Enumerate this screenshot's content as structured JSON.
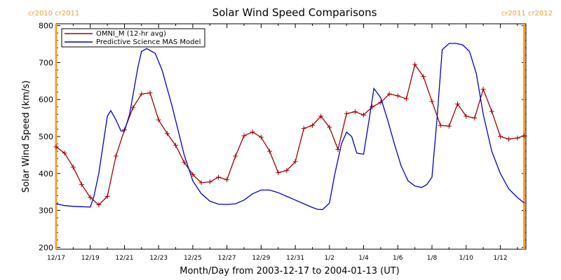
{
  "chart_data": {
    "type": "line",
    "title": "Solar Wind Speed Comparisons",
    "xlabel": "Month/Day from 2003-12-17 to 2004-01-13 (UT)",
    "ylabel": "Solar Wind Speed (km/s)",
    "xlim": [
      0,
      27.5
    ],
    "ylim": [
      195,
      805
    ],
    "yticks": [
      200,
      300,
      400,
      500,
      600,
      700,
      800
    ],
    "xticks": [
      {
        "x": 0,
        "label": "12/17"
      },
      {
        "x": 2,
        "label": "12/19"
      },
      {
        "x": 4,
        "label": "12/21"
      },
      {
        "x": 6,
        "label": "12/23"
      },
      {
        "x": 8,
        "label": "12/25"
      },
      {
        "x": 10,
        "label": "12/27"
      },
      {
        "x": 12,
        "label": "12/29"
      },
      {
        "x": 14,
        "label": "12/31"
      },
      {
        "x": 16,
        "label": "1/2"
      },
      {
        "x": 18,
        "label": "1/4"
      },
      {
        "x": 20,
        "label": "1/6"
      },
      {
        "x": 22,
        "label": "1/8"
      },
      {
        "x": 24,
        "label": "1/10"
      },
      {
        "x": 26,
        "label": "1/12"
      }
    ],
    "rotation_markers": [
      {
        "x": 0,
        "label": "cr2010 cr2011",
        "color": "#f2a030"
      },
      {
        "x": 27.4,
        "label": "cr2011 cr2012",
        "color": "#f2a030"
      }
    ],
    "legend_position": "top-left",
    "series": [
      {
        "name": "OMNI_M (12-hr avg)",
        "color": "#a00000",
        "marker": "plus",
        "x": [
          0,
          0.5,
          1,
          1.5,
          2,
          2.5,
          3,
          3.5,
          4,
          4.5,
          5,
          5.5,
          6,
          6.5,
          7,
          7.5,
          8,
          8.5,
          9,
          9.5,
          10,
          10.5,
          11,
          11.5,
          12,
          12.5,
          13,
          13.5,
          14,
          14.5,
          15,
          15.5,
          16,
          16.5,
          17,
          17.5,
          18,
          18.5,
          19,
          19.5,
          20,
          20.5,
          21,
          21.5,
          22,
          22.5,
          23,
          23.5,
          24,
          24.5,
          25,
          25.5,
          26,
          26.5,
          27,
          27.4
        ],
        "y": [
          472,
          455,
          417,
          370,
          335,
          315,
          338,
          447,
          518,
          578,
          615,
          618,
          545,
          508,
          476,
          430,
          397,
          375,
          377,
          390,
          383,
          447,
          502,
          512,
          498,
          460,
          402,
          408,
          432,
          522,
          530,
          555,
          525,
          465,
          562,
          567,
          558,
          580,
          592,
          615,
          610,
          602,
          695,
          662,
          595,
          530,
          528,
          588,
          555,
          550,
          628,
          568,
          500,
          493,
          496,
          502
        ]
      },
      {
        "name": "Predictive Science MAS Model",
        "color": "#0000cc",
        "marker": "none",
        "x": [
          0,
          0.5,
          1,
          1.5,
          2,
          2.2,
          2.5,
          3,
          3.2,
          3.5,
          3.8,
          4,
          4.3,
          4.8,
          5,
          5.3,
          5.8,
          6.2,
          6.8,
          7.5,
          8,
          8.5,
          9,
          9.5,
          10,
          10.5,
          11,
          11.5,
          12,
          12.5,
          13,
          13.5,
          14,
          14.5,
          15,
          15.3,
          15.6,
          16,
          16.3,
          16.7,
          17,
          17.3,
          17.6,
          18,
          18.3,
          18.6,
          19,
          19.4,
          19.8,
          20.2,
          20.6,
          21,
          21.4,
          21.7,
          22,
          22.3,
          22.6,
          23,
          23.4,
          23.8,
          24.2,
          24.6,
          25,
          25.5,
          26,
          26.5,
          27,
          27.4
        ],
        "y": [
          318,
          313,
          311,
          310,
          309,
          335,
          400,
          555,
          570,
          545,
          515,
          515,
          560,
          690,
          730,
          738,
          725,
          680,
          580,
          450,
          380,
          345,
          325,
          317,
          316,
          318,
          328,
          345,
          355,
          355,
          348,
          338,
          328,
          318,
          308,
          303,
          302,
          320,
          395,
          480,
          512,
          500,
          455,
          452,
          540,
          630,
          605,
          545,
          480,
          420,
          380,
          366,
          362,
          370,
          390,
          550,
          735,
          752,
          752,
          748,
          730,
          670,
          560,
          460,
          400,
          358,
          335,
          320
        ]
      }
    ]
  }
}
